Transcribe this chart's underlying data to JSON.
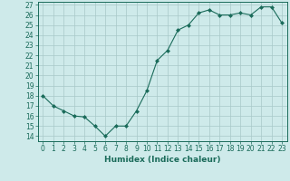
{
  "x": [
    0,
    1,
    2,
    3,
    4,
    5,
    6,
    7,
    8,
    9,
    10,
    11,
    12,
    13,
    14,
    15,
    16,
    17,
    18,
    19,
    20,
    21,
    22,
    23
  ],
  "y": [
    18,
    17,
    16.5,
    16,
    15.9,
    15,
    14,
    15,
    15,
    16.5,
    18.5,
    21.5,
    22.5,
    24.5,
    25,
    26.2,
    26.5,
    26,
    26,
    26.2,
    26,
    26.8,
    26.8,
    25.2
  ],
  "xlabel": "Humidex (Indice chaleur)",
  "ylim_min": 13.5,
  "ylim_max": 27.3,
  "xlim_min": -0.5,
  "xlim_max": 23.5,
  "yticks": [
    14,
    15,
    16,
    17,
    18,
    19,
    20,
    21,
    22,
    23,
    24,
    25,
    26,
    27
  ],
  "xticks": [
    0,
    1,
    2,
    3,
    4,
    5,
    6,
    7,
    8,
    9,
    10,
    11,
    12,
    13,
    14,
    15,
    16,
    17,
    18,
    19,
    20,
    21,
    22,
    23
  ],
  "line_color": "#1a6b5a",
  "marker_color": "#1a6b5a",
  "bg_color": "#ceeaea",
  "grid_color": "#a8c8c8",
  "axis_color": "#1a6b5a",
  "tick_label_color": "#1a6b5a",
  "xlabel_color": "#1a6b5a",
  "xlabel_fontsize": 6.5,
  "tick_fontsize": 5.5
}
